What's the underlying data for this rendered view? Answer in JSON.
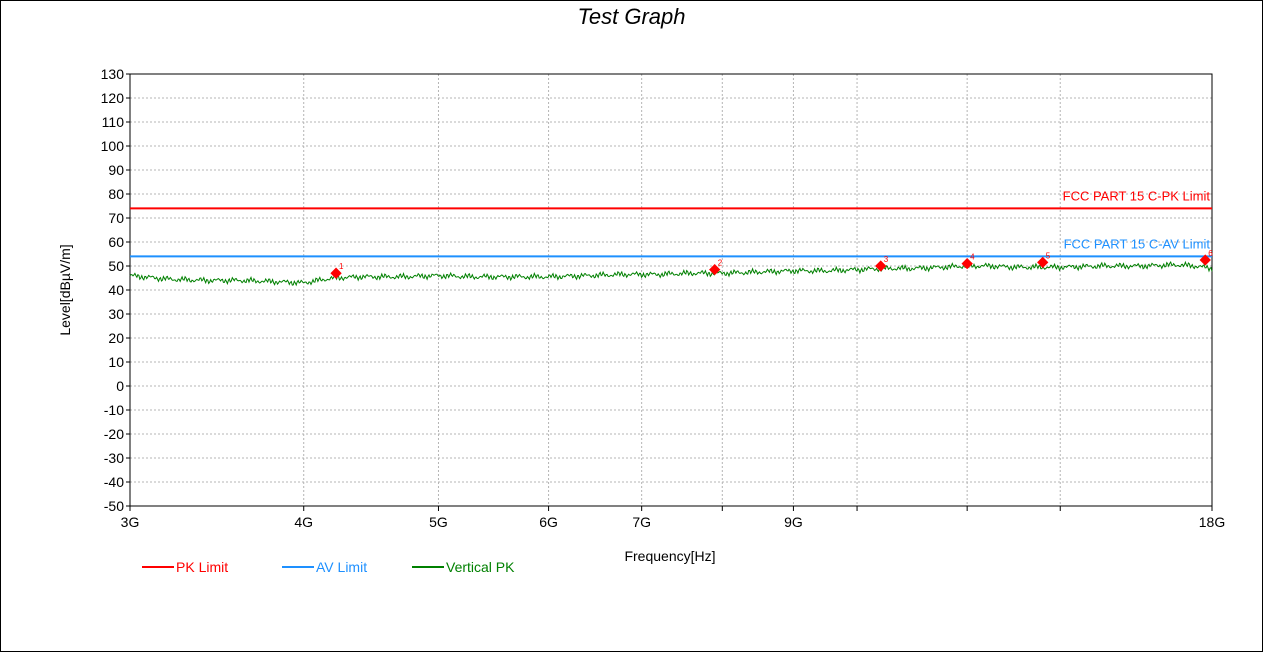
{
  "chart_data": {
    "type": "line",
    "title": "Test Graph",
    "xlabel": "Frequency[Hz]",
    "ylabel": "Level[dBµV/m]",
    "x_scale": "log",
    "xlim": [
      3000000000,
      18000000000
    ],
    "ylim": [
      -50,
      130
    ],
    "y_ticks": [
      130,
      120,
      110,
      100,
      90,
      80,
      70,
      60,
      50,
      40,
      30,
      20,
      10,
      0,
      -10,
      -20,
      -30,
      -40,
      -50
    ],
    "x_ticks": [
      {
        "value": 3000000000,
        "label": "3G"
      },
      {
        "value": 4000000000,
        "label": "4G"
      },
      {
        "value": 5000000000,
        "label": "5G"
      },
      {
        "value": 6000000000,
        "label": "6G"
      },
      {
        "value": 7000000000,
        "label": "7G"
      },
      {
        "value": 9000000000,
        "label": "9G"
      },
      {
        "value": 18000000000,
        "label": "18G"
      }
    ],
    "x_minor_grid": [
      8000000000,
      10000000000,
      12000000000,
      14000000000
    ],
    "grid": true,
    "legend_position": "bottom-left",
    "series": [
      {
        "name": "PK Limit",
        "color": "#ff0000",
        "x": [
          3000000000,
          18000000000
        ],
        "y": [
          74,
          74
        ],
        "annotation": "FCC PART 15 C-PK Limit"
      },
      {
        "name": "AV Limit",
        "color": "#1e90ff",
        "x": [
          3000000000,
          18000000000
        ],
        "y": [
          54,
          54
        ],
        "annotation": "FCC PART 15 C-AV Limit"
      },
      {
        "name": "Vertical PK",
        "color": "#008000",
        "x": [
          3000000000,
          3200000000,
          3400000000,
          3600000000,
          3800000000,
          4000000000,
          4200000000,
          4400000000,
          4700000000,
          5000000000,
          5300000000,
          5600000000,
          6000000000,
          6400000000,
          6800000000,
          7200000000,
          7600000000,
          8000000000,
          8500000000,
          9000000000,
          9500000000,
          10000000000,
          10500000000,
          11000000000,
          11500000000,
          12000000000,
          12500000000,
          13000000000,
          14000000000,
          15000000000,
          16000000000,
          17000000000,
          17500000000,
          18000000000
        ],
        "y": [
          46,
          44.5,
          44,
          44,
          43.5,
          43,
          45,
          45.5,
          45.5,
          46,
          45.5,
          45.5,
          45.5,
          46,
          46.5,
          46.5,
          47,
          47,
          47.5,
          48,
          48,
          48.5,
          49,
          49,
          49.5,
          50,
          50,
          49.5,
          49.5,
          50,
          50,
          50.5,
          50,
          49
        ]
      }
    ],
    "markers": [
      {
        "label": "1",
        "x": 4220000000,
        "y": 47
      },
      {
        "label": "2",
        "x": 7900000000,
        "y": 48.5
      },
      {
        "label": "3",
        "x": 10400000000,
        "y": 50
      },
      {
        "label": "4",
        "x": 12000000000,
        "y": 51
      },
      {
        "label": "5",
        "x": 13600000000,
        "y": 51.5
      },
      {
        "label": "6",
        "x": 17800000000,
        "y": 52.5
      }
    ]
  }
}
